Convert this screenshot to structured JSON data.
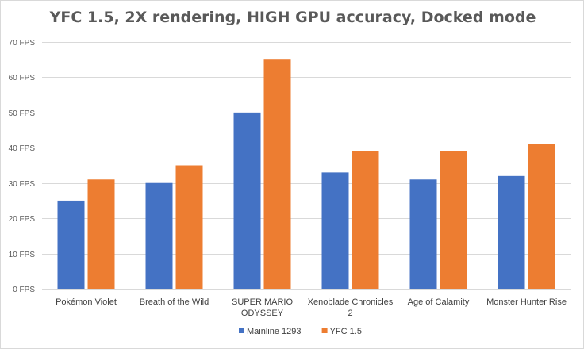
{
  "chart_data": {
    "type": "bar",
    "title": "YFC 1.5, 2X rendering,  HIGH GPU accuracy, Docked mode",
    "xlabel": "",
    "ylabel": "",
    "ylim": [
      0,
      70
    ],
    "yticks": [
      0,
      10,
      20,
      30,
      40,
      50,
      60,
      70
    ],
    "ytick_suffix": " FPS",
    "grid": true,
    "legend_position": "bottom",
    "categories": [
      [
        "Pokémon Violet"
      ],
      [
        "Breath of the Wild"
      ],
      [
        "SUPER MARIO",
        "ODYSSEY"
      ],
      [
        "Xenoblade Chronicles",
        "2"
      ],
      [
        "Age of Calamity"
      ],
      [
        "Monster Hunter Rise"
      ]
    ],
    "series": [
      {
        "name": "Mainline 1293",
        "color": "#4472C4",
        "values": [
          25,
          30,
          50,
          33,
          31,
          32
        ]
      },
      {
        "name": "YFC 1.5",
        "color": "#ED7D31",
        "values": [
          31,
          35,
          65,
          39,
          39,
          41
        ]
      }
    ]
  }
}
